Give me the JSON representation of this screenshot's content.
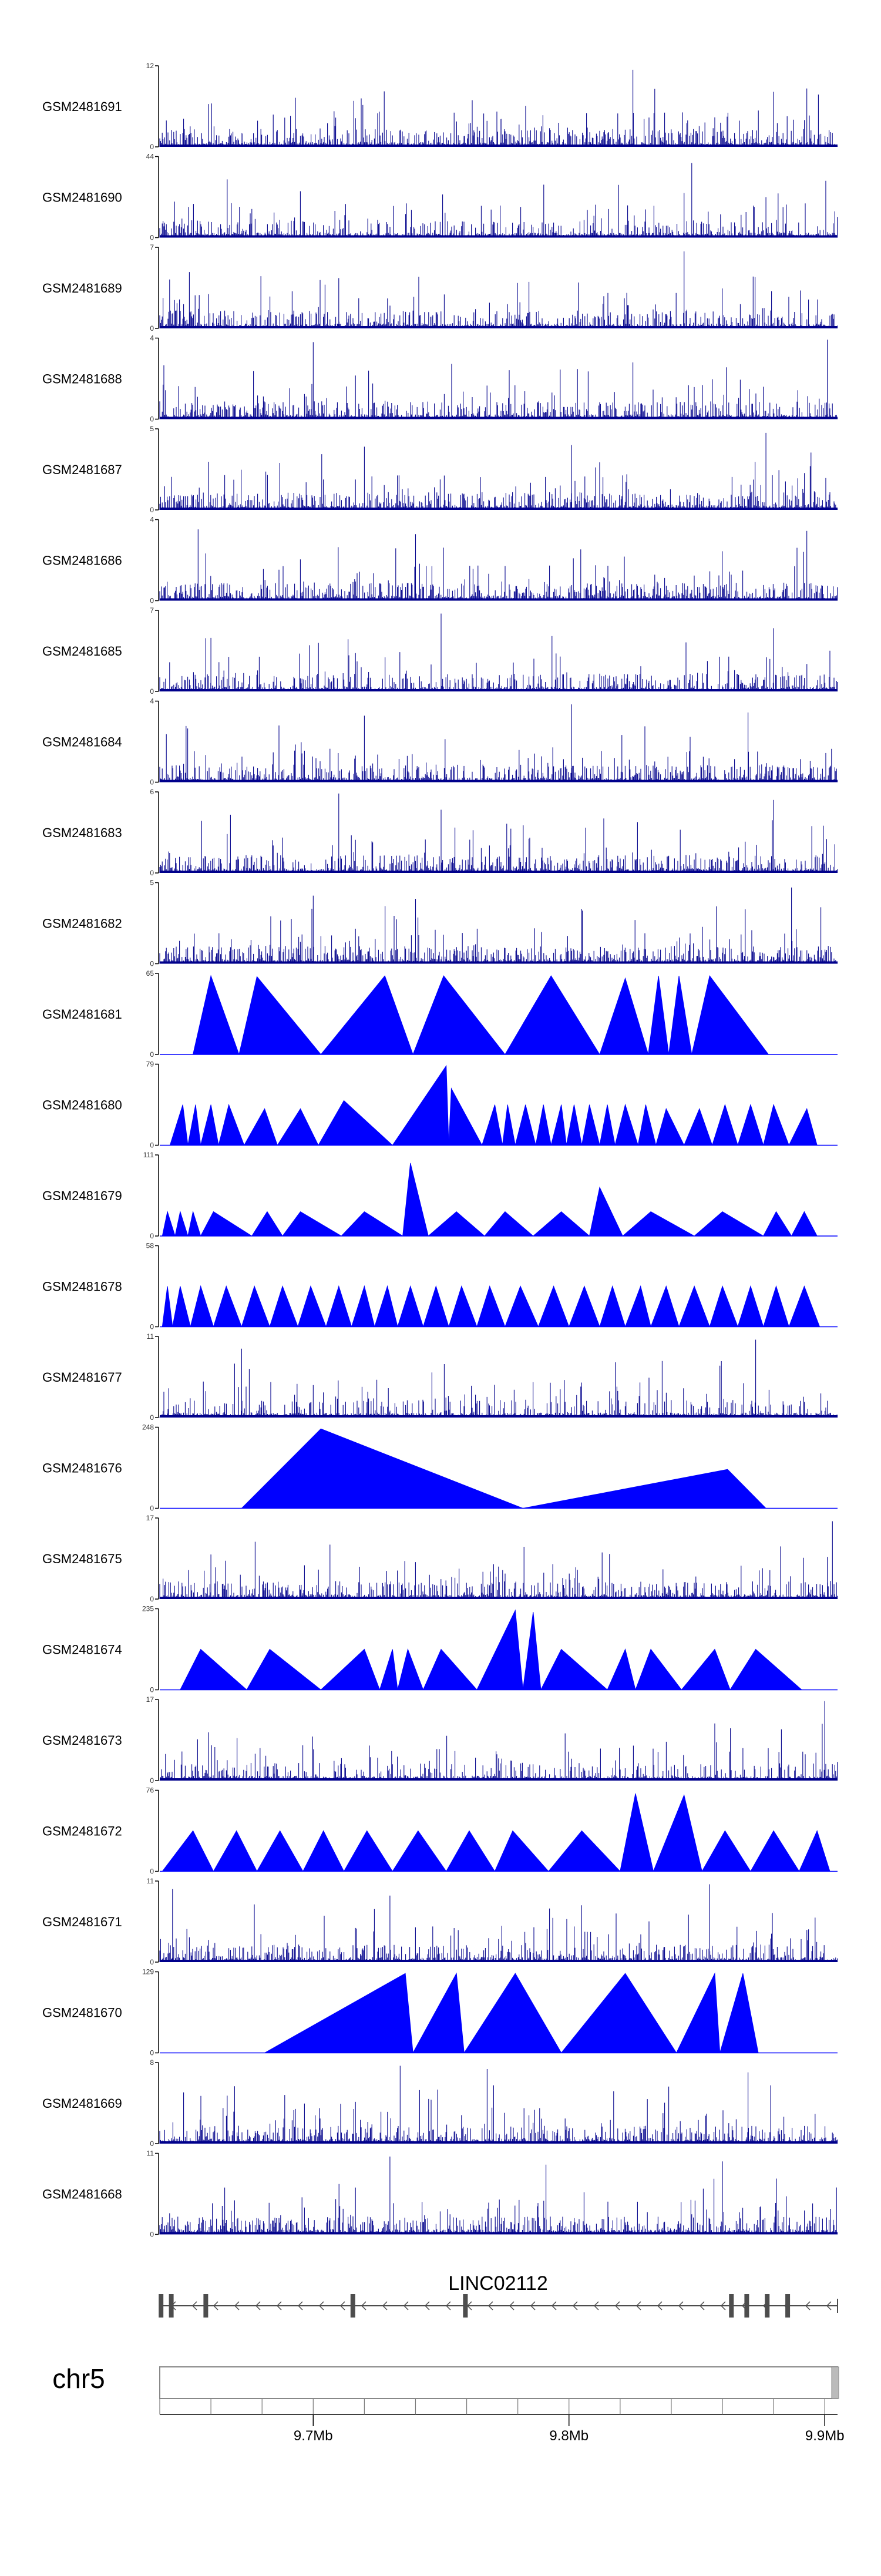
{
  "chart_data": {
    "type": "genome-tracks",
    "chromosome": "chr5",
    "region_start": 9.64,
    "region_end": 9.905,
    "region_unit": "Mb",
    "axis_ticks": [
      {
        "value": 9.7,
        "label": "9.7Mb"
      },
      {
        "value": 9.8,
        "label": "9.8Mb"
      },
      {
        "value": 9.9,
        "label": "9.9Mb"
      }
    ],
    "gene": {
      "name": "LINC02112",
      "strand": "-",
      "exons": [
        9.6405,
        9.6445,
        9.658,
        9.7155,
        9.7595,
        9.8635,
        9.8695,
        9.8775,
        9.8855
      ]
    },
    "tracks": [
      {
        "sample": "GSM2481691",
        "ymin": 0,
        "ymax": 12,
        "style": "dense",
        "seed": 11,
        "density": 0.38,
        "spikes": [
          [
            9.825,
            0.95
          ],
          [
            9.893,
            0.72
          ],
          [
            9.88,
            0.68
          ]
        ]
      },
      {
        "sample": "GSM2481690",
        "ymin": 0,
        "ymax": 44,
        "style": "dense",
        "seed": 23,
        "density": 0.26,
        "spikes": [
          [
            9.848,
            0.92
          ],
          [
            9.845,
            0.55
          ],
          [
            9.877,
            0.5
          ]
        ]
      },
      {
        "sample": "GSM2481689",
        "ymin": 0,
        "ymax": 7,
        "style": "dense",
        "seed": 37,
        "density": 0.3,
        "spikes": [
          [
            9.845,
            0.95
          ],
          [
            9.71,
            0.62
          ],
          [
            9.872,
            0.64
          ]
        ]
      },
      {
        "sample": "GSM2481688",
        "ymin": 0,
        "ymax": 4,
        "style": "dense",
        "seed": 41,
        "density": 0.34,
        "spikes": [
          [
            9.7,
            0.95
          ],
          [
            9.901,
            0.98
          ],
          [
            9.825,
            0.7
          ]
        ]
      },
      {
        "sample": "GSM2481687",
        "ymin": 0,
        "ymax": 5,
        "style": "dense",
        "seed": 53,
        "density": 0.36,
        "spikes": [
          [
            9.877,
            0.95
          ],
          [
            9.72,
            0.78
          ],
          [
            9.801,
            0.8
          ]
        ]
      },
      {
        "sample": "GSM2481686",
        "ymin": 0,
        "ymax": 4,
        "style": "dense",
        "seed": 67,
        "density": 0.36,
        "spikes": [
          [
            9.655,
            0.88
          ],
          [
            9.74,
            0.82
          ],
          [
            9.893,
            0.86
          ]
        ]
      },
      {
        "sample": "GSM2481685",
        "ymin": 0,
        "ymax": 7,
        "style": "dense",
        "seed": 71,
        "density": 0.34,
        "spikes": [
          [
            9.75,
            0.96
          ],
          [
            9.88,
            0.78
          ],
          [
            9.66,
            0.66
          ]
        ]
      },
      {
        "sample": "GSM2481684",
        "ymin": 0,
        "ymax": 4,
        "style": "dense",
        "seed": 83,
        "density": 0.36,
        "spikes": [
          [
            9.801,
            0.96
          ],
          [
            9.87,
            0.86
          ],
          [
            9.72,
            0.82
          ]
        ]
      },
      {
        "sample": "GSM2481683",
        "ymin": 0,
        "ymax": 6,
        "style": "dense",
        "seed": 97,
        "density": 0.38,
        "spikes": [
          [
            9.71,
            0.98
          ],
          [
            9.88,
            0.9
          ],
          [
            9.75,
            0.78
          ]
        ]
      },
      {
        "sample": "GSM2481682",
        "ymin": 0,
        "ymax": 5,
        "style": "dense",
        "seed": 101,
        "density": 0.36,
        "spikes": [
          [
            9.887,
            0.94
          ],
          [
            9.7,
            0.84
          ],
          [
            9.74,
            0.8
          ]
        ]
      },
      {
        "sample": "GSM2481681",
        "ymin": 0,
        "ymax": 65,
        "style": "triangles",
        "triangles": [
          [
            9.653,
            9.66,
            9.671
          ],
          [
            9.671,
            9.678,
            9.703
          ],
          [
            9.703,
            9.728,
            9.739
          ],
          [
            9.739,
            9.751,
            9.775
          ],
          [
            9.775,
            9.793,
            9.812
          ],
          [
            9.812,
            9.822,
            9.831
          ],
          [
            9.831,
            9.835,
            9.839
          ],
          [
            9.839,
            9.843,
            9.848
          ],
          [
            9.848,
            9.855,
            9.878
          ]
        ],
        "heights": [
          0.97,
          0.96,
          0.97,
          0.97,
          0.97,
          0.94,
          0.97,
          0.97,
          0.97
        ]
      },
      {
        "sample": "GSM2481680",
        "ymin": 0,
        "ymax": 79,
        "style": "triangles",
        "triangles": [
          [
            9.644,
            9.649,
            9.651
          ],
          [
            9.651,
            9.654,
            9.656
          ],
          [
            9.656,
            9.66,
            9.663
          ],
          [
            9.663,
            9.667,
            9.673
          ],
          [
            9.673,
            9.681,
            9.686
          ],
          [
            9.686,
            9.695,
            9.702
          ],
          [
            9.702,
            9.712,
            9.731
          ],
          [
            9.731,
            9.752,
            9.753
          ],
          [
            9.753,
            9.754,
            9.766
          ],
          [
            9.766,
            9.771,
            9.774
          ],
          [
            9.774,
            9.776,
            9.779
          ],
          [
            9.779,
            9.783,
            9.787
          ],
          [
            9.787,
            9.79,
            9.793
          ],
          [
            9.793,
            9.797,
            9.799
          ],
          [
            9.799,
            9.802,
            9.805
          ],
          [
            9.805,
            9.808,
            9.812
          ],
          [
            9.812,
            9.815,
            9.818
          ],
          [
            9.818,
            9.822,
            9.827
          ],
          [
            9.827,
            9.83,
            9.834
          ],
          [
            9.834,
            9.838,
            9.845
          ],
          [
            9.845,
            9.851,
            9.856
          ],
          [
            9.856,
            9.861,
            9.866
          ],
          [
            9.866,
            9.871,
            9.876
          ],
          [
            9.876,
            9.88,
            9.886
          ],
          [
            9.886,
            9.893,
            9.897
          ]
        ],
        "heights": [
          0.5,
          0.5,
          0.5,
          0.5,
          0.45,
          0.45,
          0.55,
          0.98,
          0.7,
          0.5,
          0.5,
          0.5,
          0.5,
          0.5,
          0.5,
          0.5,
          0.5,
          0.5,
          0.5,
          0.45,
          0.45,
          0.5,
          0.5,
          0.5,
          0.45
        ]
      },
      {
        "sample": "GSM2481679",
        "ymin": 0,
        "ymax": 111,
        "style": "triangles",
        "triangles": [
          [
            9.641,
            9.643,
            9.646
          ],
          [
            9.646,
            9.648,
            9.651
          ],
          [
            9.651,
            9.653,
            9.656
          ],
          [
            9.656,
            9.661,
            9.676
          ],
          [
            9.676,
            9.682,
            9.688
          ],
          [
            9.688,
            9.695,
            9.711
          ],
          [
            9.711,
            9.72,
            9.735
          ],
          [
            9.735,
            9.738,
            9.745
          ],
          [
            9.745,
            9.756,
            9.767
          ],
          [
            9.767,
            9.775,
            9.786
          ],
          [
            9.786,
            9.797,
            9.808
          ],
          [
            9.808,
            9.812,
            9.821
          ],
          [
            9.821,
            9.832,
            9.849
          ],
          [
            9.849,
            9.86,
            9.876
          ],
          [
            9.876,
            9.881,
            9.887
          ],
          [
            9.887,
            9.892,
            9.897
          ]
        ],
        "heights": [
          0.3,
          0.3,
          0.3,
          0.3,
          0.3,
          0.3,
          0.3,
          0.9,
          0.3,
          0.3,
          0.3,
          0.6,
          0.3,
          0.3,
          0.3,
          0.3
        ]
      },
      {
        "sample": "GSM2481678",
        "ymin": 0,
        "ymax": 58,
        "style": "triangles",
        "triangles": [
          [
            9.641,
            9.643,
            9.645
          ],
          [
            9.645,
            9.648,
            9.652
          ],
          [
            9.652,
            9.656,
            9.661
          ],
          [
            9.661,
            9.666,
            9.672
          ],
          [
            9.672,
            9.677,
            9.683
          ],
          [
            9.683,
            9.688,
            9.694
          ],
          [
            9.694,
            9.699,
            9.705
          ],
          [
            9.705,
            9.71,
            9.715
          ],
          [
            9.715,
            9.72,
            9.724
          ],
          [
            9.724,
            9.729,
            9.733
          ],
          [
            9.733,
            9.738,
            9.743
          ],
          [
            9.743,
            9.748,
            9.753
          ],
          [
            9.753,
            9.758,
            9.764
          ],
          [
            9.764,
            9.769,
            9.775
          ],
          [
            9.775,
            9.781,
            9.788
          ],
          [
            9.788,
            9.794,
            9.8
          ],
          [
            9.8,
            9.806,
            9.812
          ],
          [
            9.812,
            9.817,
            9.822
          ],
          [
            9.822,
            9.828,
            9.832
          ],
          [
            9.832,
            9.838,
            9.843
          ],
          [
            9.843,
            9.849,
            9.855
          ],
          [
            9.855,
            9.86,
            9.866
          ],
          [
            9.866,
            9.871,
            9.876
          ],
          [
            9.876,
            9.881,
            9.886
          ],
          [
            9.886,
            9.892,
            9.898
          ]
        ],
        "heights": [
          0.5,
          0.5,
          0.5,
          0.5,
          0.5,
          0.5,
          0.5,
          0.5,
          0.5,
          0.5,
          0.5,
          0.5,
          0.5,
          0.5,
          0.5,
          0.5,
          0.5,
          0.5,
          0.5,
          0.5,
          0.5,
          0.5,
          0.5,
          0.5,
          0.5
        ]
      },
      {
        "sample": "GSM2481677",
        "ymin": 0,
        "ymax": 11,
        "style": "dense",
        "seed": 131,
        "density": 0.2,
        "spikes": [
          [
            9.672,
            0.85
          ],
          [
            9.675,
            0.6
          ],
          [
            9.873,
            0.96
          ],
          [
            9.859,
            0.64
          ],
          [
            9.7,
            0.4
          ]
        ]
      },
      {
        "sample": "GSM2481676",
        "ymin": 0,
        "ymax": 248,
        "style": "triangles",
        "triangles": [
          [
            9.672,
            9.703,
            9.782
          ],
          [
            9.782,
            9.862,
            9.877
          ]
        ],
        "heights": [
          0.98,
          0.48
        ]
      },
      {
        "sample": "GSM2481675",
        "ymin": 0,
        "ymax": 17,
        "style": "dense",
        "seed": 149,
        "density": 0.3,
        "spikes": [
          [
            9.903,
            0.96
          ],
          [
            9.901,
            0.52
          ],
          [
            9.66,
            0.55
          ]
        ]
      },
      {
        "sample": "GSM2481674",
        "ymin": 0,
        "ymax": 235,
        "style": "triangles",
        "triangles": [
          [
            9.648,
            9.656,
            9.674
          ],
          [
            9.674,
            9.683,
            9.703
          ],
          [
            9.703,
            9.72,
            9.726
          ],
          [
            9.726,
            9.731,
            9.733
          ],
          [
            9.733,
            9.737,
            9.743
          ],
          [
            9.743,
            9.75,
            9.764
          ],
          [
            9.764,
            9.779,
            9.782
          ],
          [
            9.782,
            9.786,
            9.789
          ],
          [
            9.789,
            9.797,
            9.815
          ],
          [
            9.815,
            9.822,
            9.826
          ],
          [
            9.826,
            9.832,
            9.844
          ],
          [
            9.844,
            9.857,
            9.863
          ],
          [
            9.863,
            9.873,
            9.891
          ]
        ],
        "heights": [
          0.5,
          0.5,
          0.5,
          0.5,
          0.5,
          0.5,
          0.98,
          0.96,
          0.5,
          0.5,
          0.5,
          0.5,
          0.5
        ]
      },
      {
        "sample": "GSM2481673",
        "ymin": 0,
        "ymax": 17,
        "style": "dense",
        "seed": 163,
        "density": 0.22,
        "spikes": [
          [
            9.9,
            0.98
          ],
          [
            9.899,
            0.7
          ],
          [
            9.868,
            0.4
          ]
        ]
      },
      {
        "sample": "GSM2481672",
        "ymin": 0,
        "ymax": 76,
        "style": "triangles",
        "triangles": [
          [
            9.641,
            9.653,
            9.661
          ],
          [
            9.661,
            9.67,
            9.678
          ],
          [
            9.678,
            9.687,
            9.696
          ],
          [
            9.696,
            9.704,
            9.712
          ],
          [
            9.712,
            9.721,
            9.731
          ],
          [
            9.731,
            9.741,
            9.752
          ],
          [
            9.752,
            9.761,
            9.771
          ],
          [
            9.771,
            9.778,
            9.792
          ],
          [
            9.792,
            9.805,
            9.82
          ],
          [
            9.82,
            9.826,
            9.833
          ],
          [
            9.833,
            9.845,
            9.852
          ],
          [
            9.852,
            9.861,
            9.871
          ],
          [
            9.871,
            9.88,
            9.89
          ],
          [
            9.89,
            9.897,
            9.902
          ]
        ],
        "heights": [
          0.5,
          0.5,
          0.5,
          0.5,
          0.5,
          0.5,
          0.5,
          0.5,
          0.5,
          0.96,
          0.94,
          0.5,
          0.5,
          0.5
        ]
      },
      {
        "sample": "GSM2481671",
        "ymin": 0,
        "ymax": 11,
        "style": "dense",
        "seed": 179,
        "density": 0.34,
        "spikes": [
          [
            9.855,
            0.96
          ],
          [
            9.645,
            0.9
          ],
          [
            9.73,
            0.82
          ]
        ]
      },
      {
        "sample": "GSM2481670",
        "ymin": 0,
        "ymax": 129,
        "style": "triangles",
        "triangles": [
          [
            9.681,
            9.736,
            9.739
          ],
          [
            9.739,
            9.756,
            9.759
          ],
          [
            9.759,
            9.779,
            9.797
          ],
          [
            9.797,
            9.822,
            9.842
          ],
          [
            9.842,
            9.857,
            9.859
          ],
          [
            9.859,
            9.868,
            9.874
          ]
        ],
        "heights": [
          0.98,
          0.98,
          0.98,
          0.98,
          0.98,
          0.98
        ]
      },
      {
        "sample": "GSM2481669",
        "ymin": 0,
        "ymax": 8,
        "style": "dense",
        "seed": 191,
        "density": 0.34,
        "spikes": [
          [
            9.734,
            0.96
          ],
          [
            9.768,
            0.92
          ],
          [
            9.87,
            0.88
          ]
        ]
      },
      {
        "sample": "GSM2481668",
        "ymin": 0,
        "ymax": 11,
        "style": "dense",
        "seed": 199,
        "density": 0.34,
        "spikes": [
          [
            9.73,
            0.96
          ],
          [
            9.791,
            0.86
          ],
          [
            9.86,
            0.9
          ]
        ]
      }
    ]
  },
  "colors": {
    "signal": "#0000ff",
    "signal_dark": "#00008b",
    "axis": "#000000",
    "gene": "#4d4d4d",
    "ideogram": "#ffffff",
    "ideogram_border": "#888888",
    "highlight": "#bbbbbb"
  }
}
